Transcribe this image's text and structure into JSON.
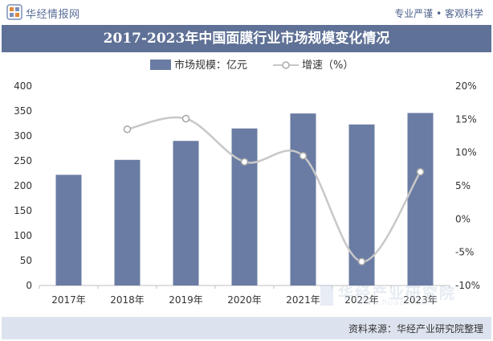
{
  "header": {
    "brand": "华经情报网",
    "slogan": "专业严谨 • 客观科学"
  },
  "title": "2017-2023年中国面膜行业市场规模变化情况",
  "footer": {
    "source": "资料来源：华经产业研究院整理"
  },
  "watermark": {
    "cn": "华经产业研究院",
    "en": "www.huaon.com"
  },
  "colors": {
    "bar": "#6a7ca3",
    "line": "#c8c8c8",
    "marker_fill": "#ffffff",
    "title_bg": "#5f7196",
    "footer_bg": "#dde3ee"
  },
  "chart_data": {
    "type": "bar",
    "categories": [
      "2017年",
      "2018年",
      "2019年",
      "2020年",
      "2021年",
      "2022年",
      "2023年"
    ],
    "series": [
      {
        "name": "市场规模：亿元",
        "type": "bar",
        "axis": "left",
        "values": [
          222,
          252,
          290,
          315,
          345,
          323,
          346
        ]
      },
      {
        "name": "增速（%）",
        "type": "line",
        "axis": "right",
        "values": [
          null,
          13.5,
          15.1,
          8.6,
          9.5,
          -6.4,
          7.1
        ]
      }
    ],
    "y_left": {
      "min": 0,
      "max": 400,
      "ticks": [
        "0",
        "50",
        "100",
        "150",
        "200",
        "250",
        "300",
        "350",
        "400"
      ]
    },
    "y_right": {
      "min": -10,
      "max": 20,
      "ticks": [
        "-10%",
        "-5%",
        "0%",
        "5%",
        "10%",
        "15%",
        "20%"
      ]
    },
    "legend": "top-center",
    "grid": false
  }
}
